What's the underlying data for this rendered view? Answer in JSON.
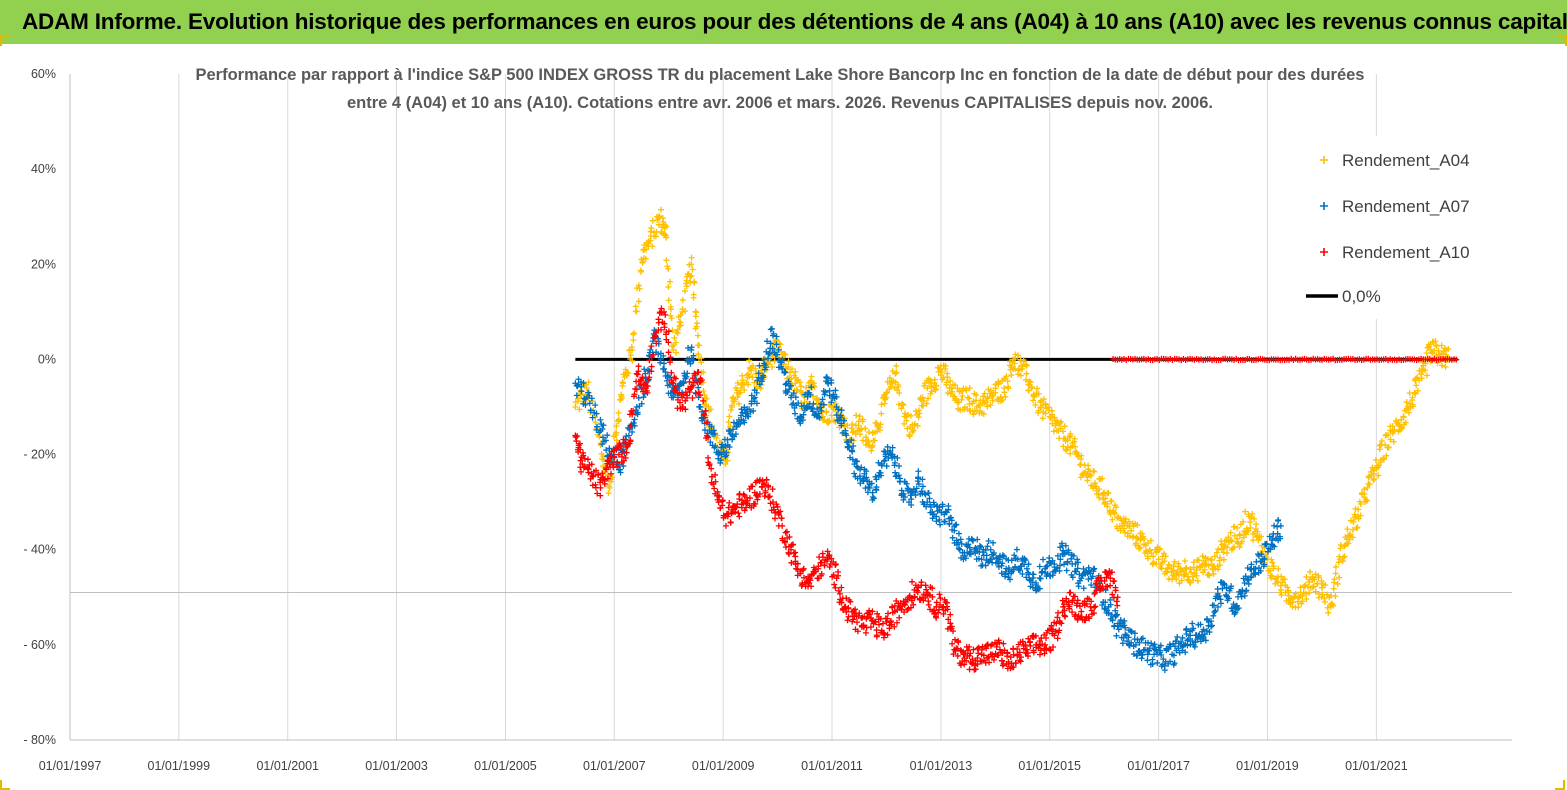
{
  "banner": {
    "title": "ADAM Informe. Evolution historique des performances en euros pour des détentions de 4 ans (A04) à 10 ans (A10) avec les revenus connus capitalisés"
  },
  "colors": {
    "banner_bg": "#92d050",
    "a04": "#ffc000",
    "a07": "#0070c0",
    "a10": "#ff0000",
    "zero_line": "#000000",
    "gridline": "#d9d9d9"
  },
  "chart_data": {
    "type": "scatter",
    "title_lines": [
      "Performance par rapport à l'indice S&P 500 INDEX GROSS TR  du placement Lake Shore Bancorp Inc en fonction de la date de début pour des durées",
      "entre 4 (A04) et 10 ans (A10). Cotations entre avr. 2006 et mars. 2026. Revenus CAPITALISES depuis nov. 2006."
    ],
    "x_tick_labels": [
      "01/01/1997",
      "01/01/1999",
      "01/01/2001",
      "01/01/2003",
      "01/01/2005",
      "01/01/2007",
      "01/01/2009",
      "01/01/2011",
      "01/01/2013",
      "01/01/2015",
      "01/01/2017",
      "01/01/2019",
      "01/01/2021"
    ],
    "y_tick_labels": [
      "60%",
      "40%",
      "20%",
      "0%",
      "- 20%",
      "- 40%",
      "- 60%",
      "- 80%"
    ],
    "xlim": [
      "1997-01-01",
      "2023-06-30"
    ],
    "ylim": [
      -80,
      60
    ],
    "y_unit": "%",
    "grid": "vertical gridlines at each x tick, horizontal line at 0%",
    "legend_position": "top-right",
    "legend": [
      "Rendement_A04",
      "Rendement_A07",
      "Rendement_A10",
      "0,0%"
    ],
    "series": [
      {
        "name": "Rendement_A04",
        "marker": "+",
        "points": [
          [
            "2006-04-15",
            -10
          ],
          [
            "2006-07-01",
            -6
          ],
          [
            "2006-10-01",
            -18
          ],
          [
            "2006-12-01",
            -27
          ],
          [
            "2007-01-15",
            -14
          ],
          [
            "2007-03-01",
            -5
          ],
          [
            "2007-05-01",
            2
          ],
          [
            "2007-07-01",
            21
          ],
          [
            "2007-09-01",
            25
          ],
          [
            "2007-11-01",
            30
          ],
          [
            "2007-12-15",
            26
          ],
          [
            "2008-02-01",
            2
          ],
          [
            "2008-04-01",
            10
          ],
          [
            "2008-06-01",
            20
          ],
          [
            "2008-07-15",
            5
          ],
          [
            "2008-09-01",
            -8
          ],
          [
            "2008-11-01",
            -16
          ],
          [
            "2009-01-15",
            -22
          ],
          [
            "2009-03-01",
            -10
          ],
          [
            "2009-05-01",
            -6
          ],
          [
            "2009-07-01",
            -2
          ],
          [
            "2009-09-01",
            -5
          ],
          [
            "2009-11-01",
            0
          ],
          [
            "2010-01-01",
            2
          ],
          [
            "2010-03-01",
            -2
          ],
          [
            "2010-05-01",
            -5
          ],
          [
            "2010-07-01",
            -9
          ],
          [
            "2010-09-01",
            -5
          ],
          [
            "2010-11-01",
            -12
          ],
          [
            "2011-01-01",
            -10
          ],
          [
            "2011-03-01",
            -12
          ],
          [
            "2011-05-01",
            -17
          ],
          [
            "2011-07-01",
            -13
          ],
          [
            "2011-09-01",
            -18
          ],
          [
            "2011-11-01",
            -14
          ],
          [
            "2012-01-01",
            -8
          ],
          [
            "2012-03-01",
            -3
          ],
          [
            "2012-05-01",
            -12
          ],
          [
            "2012-07-01",
            -15
          ],
          [
            "2012-09-01",
            -8
          ],
          [
            "2012-11-01",
            -5
          ],
          [
            "2013-01-01",
            -2
          ],
          [
            "2013-03-01",
            -6
          ],
          [
            "2013-05-01",
            -9
          ],
          [
            "2013-07-01",
            -8
          ],
          [
            "2013-09-01",
            -10
          ],
          [
            "2013-11-01",
            -9
          ],
          [
            "2014-01-01",
            -7
          ],
          [
            "2014-03-01",
            -6
          ],
          [
            "2014-05-01",
            0
          ],
          [
            "2014-07-01",
            -2
          ],
          [
            "2014-09-01",
            -6
          ],
          [
            "2014-11-01",
            -10
          ],
          [
            "2015-01-01",
            -12
          ],
          [
            "2015-03-01",
            -15
          ],
          [
            "2015-05-01",
            -17
          ],
          [
            "2015-07-01",
            -20
          ],
          [
            "2015-09-01",
            -24
          ],
          [
            "2015-11-01",
            -26
          ],
          [
            "2016-01-01",
            -28
          ],
          [
            "2016-03-01",
            -32
          ],
          [
            "2016-05-01",
            -35
          ],
          [
            "2016-07-01",
            -36
          ],
          [
            "2016-09-01",
            -38
          ],
          [
            "2016-11-01",
            -40
          ],
          [
            "2017-01-01",
            -42
          ],
          [
            "2017-03-01",
            -44
          ],
          [
            "2017-05-01",
            -45
          ],
          [
            "2017-07-01",
            -44
          ],
          [
            "2017-09-01",
            -45
          ],
          [
            "2017-11-01",
            -43
          ],
          [
            "2018-01-01",
            -44
          ],
          [
            "2018-03-01",
            -40
          ],
          [
            "2018-05-01",
            -38
          ],
          [
            "2018-07-01",
            -37
          ],
          [
            "2018-09-01",
            -33
          ],
          [
            "2018-11-01",
            -38
          ],
          [
            "2019-01-01",
            -42
          ],
          [
            "2019-03-01",
            -46
          ],
          [
            "2019-05-01",
            -49
          ],
          [
            "2019-07-01",
            -50
          ],
          [
            "2019-09-01",
            -49
          ],
          [
            "2019-11-01",
            -46
          ],
          [
            "2020-01-01",
            -48
          ],
          [
            "2020-03-01",
            -52
          ],
          [
            "2020-05-01",
            -42
          ],
          [
            "2020-07-01",
            -37
          ],
          [
            "2020-09-01",
            -33
          ],
          [
            "2020-11-01",
            -27
          ],
          [
            "2021-01-01",
            -23
          ],
          [
            "2021-03-01",
            -18
          ],
          [
            "2021-05-01",
            -15
          ],
          [
            "2021-07-01",
            -12
          ],
          [
            "2021-09-01",
            -8
          ],
          [
            "2021-11-01",
            -4
          ],
          [
            "2022-01-01",
            2
          ],
          [
            "2022-03-01",
            1
          ],
          [
            "2022-05-01",
            0
          ]
        ]
      },
      {
        "name": "Rendement_A07",
        "marker": "+",
        "points": [
          [
            "2006-04-15",
            -5
          ],
          [
            "2006-07-01",
            -8
          ],
          [
            "2006-10-01",
            -15
          ],
          [
            "2006-12-01",
            -20
          ],
          [
            "2007-02-01",
            -22
          ],
          [
            "2007-04-01",
            -18
          ],
          [
            "2007-06-01",
            -10
          ],
          [
            "2007-08-01",
            -4
          ],
          [
            "2007-10-01",
            5
          ],
          [
            "2007-12-01",
            -2
          ],
          [
            "2008-02-01",
            -8
          ],
          [
            "2008-04-01",
            -5
          ],
          [
            "2008-06-01",
            2
          ],
          [
            "2008-08-01",
            -10
          ],
          [
            "2008-10-01",
            -15
          ],
          [
            "2008-12-01",
            -20
          ],
          [
            "2009-02-01",
            -18
          ],
          [
            "2009-04-01",
            -14
          ],
          [
            "2009-06-01",
            -12
          ],
          [
            "2009-08-01",
            -8
          ],
          [
            "2009-10-01",
            0
          ],
          [
            "2009-12-01",
            5
          ],
          [
            "2010-02-01",
            -2
          ],
          [
            "2010-04-01",
            -8
          ],
          [
            "2010-06-01",
            -12
          ],
          [
            "2010-08-01",
            -7
          ],
          [
            "2010-10-01",
            -12
          ],
          [
            "2010-12-01",
            -4
          ],
          [
            "2011-02-01",
            -10
          ],
          [
            "2011-04-01",
            -15
          ],
          [
            "2011-06-01",
            -22
          ],
          [
            "2011-08-01",
            -25
          ],
          [
            "2011-10-01",
            -28
          ],
          [
            "2011-12-01",
            -22
          ],
          [
            "2012-02-01",
            -20
          ],
          [
            "2012-04-01",
            -25
          ],
          [
            "2012-06-01",
            -30
          ],
          [
            "2012-08-01",
            -25
          ],
          [
            "2012-10-01",
            -30
          ],
          [
            "2012-12-01",
            -33
          ],
          [
            "2013-02-01",
            -32
          ],
          [
            "2013-04-01",
            -36
          ],
          [
            "2013-06-01",
            -42
          ],
          [
            "2013-08-01",
            -38
          ],
          [
            "2013-10-01",
            -42
          ],
          [
            "2013-12-01",
            -40
          ],
          [
            "2014-02-01",
            -42
          ],
          [
            "2014-04-01",
            -45
          ],
          [
            "2014-06-01",
            -42
          ],
          [
            "2014-08-01",
            -44
          ],
          [
            "2014-10-01",
            -47
          ],
          [
            "2014-12-01",
            -44
          ],
          [
            "2015-02-01",
            -43
          ],
          [
            "2015-04-01",
            -41
          ],
          [
            "2015-06-01",
            -43
          ],
          [
            "2015-08-01",
            -46
          ],
          [
            "2015-10-01",
            -45
          ],
          [
            "2015-12-01",
            -48
          ],
          [
            "2016-02-01",
            -52
          ],
          [
            "2016-04-01",
            -56
          ],
          [
            "2016-06-01",
            -58
          ],
          [
            "2016-08-01",
            -60
          ],
          [
            "2016-10-01",
            -61
          ],
          [
            "2016-12-01",
            -62
          ],
          [
            "2017-02-01",
            -63
          ],
          [
            "2017-04-01",
            -62
          ],
          [
            "2017-06-01",
            -60
          ],
          [
            "2017-08-01",
            -58
          ],
          [
            "2017-10-01",
            -58
          ],
          [
            "2017-12-01",
            -56
          ],
          [
            "2018-02-01",
            -50
          ],
          [
            "2018-04-01",
            -48
          ],
          [
            "2018-06-01",
            -52
          ],
          [
            "2018-08-01",
            -47
          ],
          [
            "2018-10-01",
            -44
          ],
          [
            "2018-12-01",
            -42
          ],
          [
            "2019-02-01",
            -38
          ],
          [
            "2019-04-01",
            -35
          ]
        ]
      },
      {
        "name": "Rendement_A10",
        "marker": "+",
        "points": [
          [
            "2006-04-15",
            -16
          ],
          [
            "2006-06-01",
            -22
          ],
          [
            "2006-08-01",
            -24
          ],
          [
            "2006-10-01",
            -27
          ],
          [
            "2006-12-01",
            -22
          ],
          [
            "2007-02-01",
            -20
          ],
          [
            "2007-04-01",
            -18
          ],
          [
            "2007-06-01",
            -3
          ],
          [
            "2007-08-01",
            -6
          ],
          [
            "2007-10-01",
            5
          ],
          [
            "2007-12-01",
            10
          ],
          [
            "2008-02-01",
            -5
          ],
          [
            "2008-04-01",
            -10
          ],
          [
            "2008-06-01",
            -6
          ],
          [
            "2008-08-01",
            -4
          ],
          [
            "2008-10-01",
            -22
          ],
          [
            "2008-12-01",
            -30
          ],
          [
            "2009-02-01",
            -33
          ],
          [
            "2009-04-01",
            -31
          ],
          [
            "2009-06-01",
            -30
          ],
          [
            "2009-08-01",
            -28
          ],
          [
            "2009-10-01",
            -26
          ],
          [
            "2009-12-01",
            -30
          ],
          [
            "2010-02-01",
            -35
          ],
          [
            "2010-04-01",
            -40
          ],
          [
            "2010-06-01",
            -45
          ],
          [
            "2010-08-01",
            -47
          ],
          [
            "2010-10-01",
            -44
          ],
          [
            "2010-12-01",
            -42
          ],
          [
            "2011-02-01",
            -46
          ],
          [
            "2011-04-01",
            -52
          ],
          [
            "2011-06-01",
            -54
          ],
          [
            "2011-08-01",
            -56
          ],
          [
            "2011-10-01",
            -55
          ],
          [
            "2011-12-01",
            -57
          ],
          [
            "2012-02-01",
            -55
          ],
          [
            "2012-04-01",
            -52
          ],
          [
            "2012-06-01",
            -50
          ],
          [
            "2012-08-01",
            -48
          ],
          [
            "2012-10-01",
            -49
          ],
          [
            "2012-12-01",
            -52
          ],
          [
            "2013-02-01",
            -51
          ],
          [
            "2013-04-01",
            -61
          ],
          [
            "2013-06-01",
            -62
          ],
          [
            "2013-08-01",
            -63
          ],
          [
            "2013-10-01",
            -62
          ],
          [
            "2013-12-01",
            -62
          ],
          [
            "2014-02-01",
            -61
          ],
          [
            "2014-04-01",
            -64
          ],
          [
            "2014-06-01",
            -62
          ],
          [
            "2014-08-01",
            -61
          ],
          [
            "2014-10-01",
            -60
          ],
          [
            "2014-12-01",
            -60
          ],
          [
            "2015-02-01",
            -58
          ],
          [
            "2015-04-01",
            -52
          ],
          [
            "2015-06-01",
            -51
          ],
          [
            "2015-08-01",
            -53
          ],
          [
            "2015-10-01",
            -52
          ],
          [
            "2015-12-01",
            -48
          ],
          [
            "2016-02-01",
            -45
          ],
          [
            "2016-04-01",
            -50
          ]
        ]
      }
    ],
    "reference_line": {
      "name": "0,0%",
      "value": 0,
      "x_start": "2006-04-15",
      "x_end": "2022-06-30"
    },
    "a10_zero_band": {
      "value": 0,
      "x_start": "2016-03-01",
      "x_end": "2022-06-30"
    }
  }
}
